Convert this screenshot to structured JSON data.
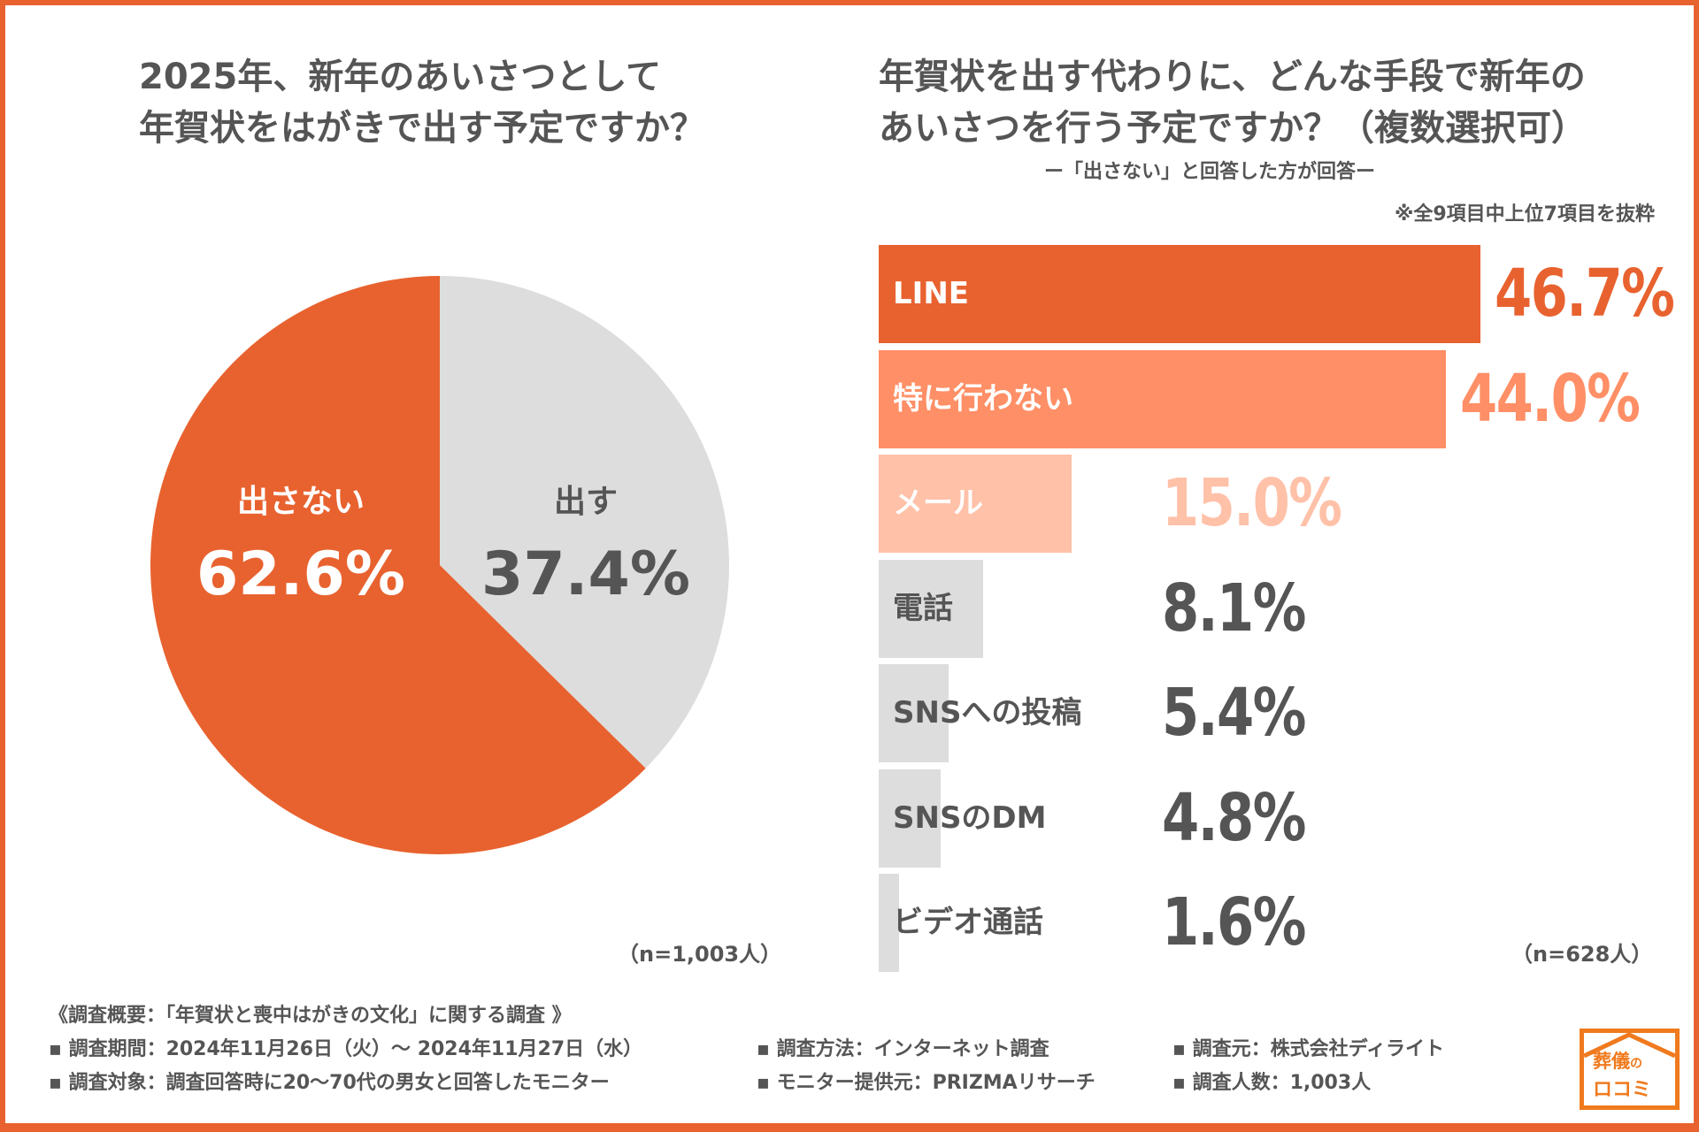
{
  "colors": {
    "accent": "#E8622F",
    "bar2": "#FF8F66",
    "bar3": "#FFC1A8",
    "grey": "#DDDDDD",
    "text": "#555555"
  },
  "chart_data": [
    {
      "type": "pie",
      "title": [
        "2025年、新年のあいさつとして",
        "年賀状をはがきで出す予定ですか？"
      ],
      "slices": [
        {
          "label": "出す",
          "value": 37.4,
          "display": "37.4%",
          "color": "#DDDDDD"
        },
        {
          "label": "出さない",
          "value": 62.6,
          "display": "62.6%",
          "color": "#E8622F"
        }
      ],
      "note": "（n=1,003人）"
    },
    {
      "type": "bar",
      "orientation": "horizontal",
      "title": [
        "年賀状を出す代わりに、どんな手段で新年の",
        "あいさつを行う予定ですか？（複数選択可）"
      ],
      "subtitle": "ー「出さない」と回答した方が回答ー",
      "annotation": "※全9項目中上位7項目を抜粋",
      "categories": [
        "LINE",
        "特に行わない",
        "メール",
        "電話",
        "SNSへの投稿",
        "SNSのDM",
        "ビデオ通話"
      ],
      "values": [
        46.7,
        44.0,
        15.0,
        8.1,
        5.4,
        4.8,
        1.6
      ],
      "display": [
        "46.7%",
        "44.0%",
        "15.0%",
        "8.1%",
        "5.4%",
        "4.8%",
        "1.6%"
      ],
      "colors": [
        "#E8622F",
        "#FF8F66",
        "#FFC1A8",
        "#DDDDDD",
        "#DDDDDD",
        "#DDDDDD",
        "#DDDDDD"
      ],
      "note": "（n=628人）"
    }
  ],
  "footer": {
    "heading": "《調査概要：「年賀状と喪中はがきの文化」に関する調査 》",
    "items": [
      "▪ 調査期間：2024年11月26日（火）～ 2024年11月27日（水）",
      "▪ 調査方法：インターネット調査",
      "▪ 調査元：株式会社ディライト",
      "▪ 調査対象：調査回答時に20～70代の男女と回答したモニター",
      "▪ モニター提供元：PRIZMAリサーチ",
      "▪ 調査人数：1,003人"
    ]
  },
  "logo": {
    "text": "葬儀のロコミ"
  }
}
